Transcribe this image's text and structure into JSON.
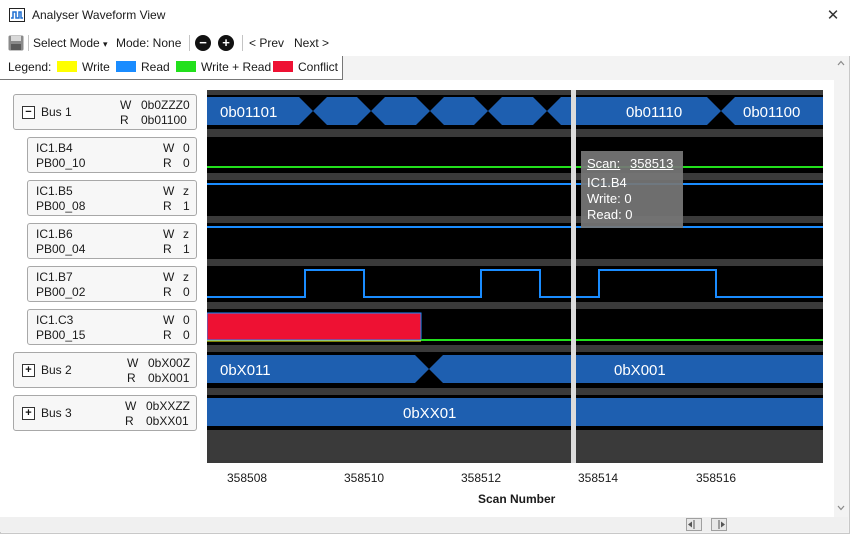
{
  "window": {
    "title": "Analyser Waveform View",
    "close_glyph": "✕"
  },
  "toolbar": {
    "select_mode_label": "Select Mode",
    "select_mode_caret": "▾",
    "mode_label": "Mode: None",
    "zoom_out_glyph": "−",
    "zoom_in_glyph": "+",
    "prev_label": "< Prev",
    "next_label": "Next >"
  },
  "legend": {
    "title": "Legend:",
    "items": [
      {
        "label": "Write",
        "color": "#ffff00"
      },
      {
        "label": "Read",
        "color": "#1a8cff"
      },
      {
        "label": "Write + Read",
        "color": "#22e01c"
      },
      {
        "label": "Conflict",
        "color": "#ee1133"
      }
    ]
  },
  "buses": [
    {
      "name": "Bus 1",
      "expander": "−",
      "w_value": "0b0ZZZ0",
      "r_value": "0b01100"
    },
    {
      "name": "Bus 2",
      "expander": "+",
      "w_value": "0bX00Z",
      "r_value": "0bX001"
    },
    {
      "name": "Bus 3",
      "expander": "+",
      "w_value": "0bXXZZ",
      "r_value": "0bXX01"
    }
  ],
  "pins": [
    {
      "id": "IC1.B4",
      "port": "PB00_10",
      "w_value": "0",
      "r_value": "0"
    },
    {
      "id": "IC1.B5",
      "port": "PB00_08",
      "w_value": "z",
      "r_value": "1"
    },
    {
      "id": "IC1.B6",
      "port": "PB00_04",
      "w_value": "z",
      "r_value": "1"
    },
    {
      "id": "IC1.B7",
      "port": "PB00_02",
      "w_value": "z",
      "r_value": "0"
    },
    {
      "id": "IC1.C3",
      "port": "PB00_15",
      "w_value": "0",
      "r_value": "0"
    }
  ],
  "wr_labels": {
    "w": "W",
    "r": "R"
  },
  "waveform": {
    "bus1_segments": [
      "0b01101",
      "0b01110",
      "0b01100"
    ],
    "bus2_segments": [
      "0bX011",
      "0bX001"
    ],
    "bus3_segments": [
      "0bXX01"
    ],
    "colors": {
      "bus_fill": "#1e5fb0",
      "read": "#1a8cff",
      "write_read": "#22e01c",
      "conflict": "#ee1133",
      "cursor": "#d8d8d8"
    }
  },
  "tooltip": {
    "scan_label": "Scan:",
    "scan_value": "358513",
    "pin": "IC1.B4",
    "write_text": "Write: 0",
    "read_text": "Read: 0"
  },
  "axis": {
    "ticks": [
      "358508",
      "358510",
      "358512",
      "358514",
      "358516"
    ],
    "label": "Scan Number"
  }
}
